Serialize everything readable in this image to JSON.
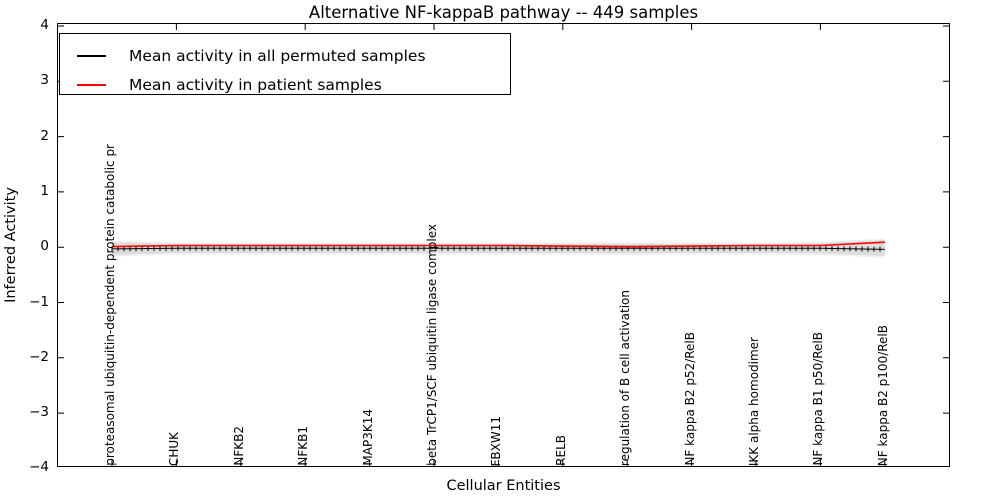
{
  "title": "Alternative NF-kappaB pathway -- 449 samples",
  "axes": {
    "xlabel": "Cellular Entities",
    "ylabel": "Inferred Activity"
  },
  "legend": {
    "position": "upper left",
    "items": [
      {
        "label": "Mean activity in all permuted samples",
        "color": "#000000"
      },
      {
        "label": "Mean activity in patient samples",
        "color": "#ff0000"
      }
    ]
  },
  "chart_data": {
    "type": "line",
    "title": "Alternative NF-kappaB pathway -- 449 samples",
    "xlabel": "Cellular Entities",
    "ylabel": "Inferred Activity",
    "ylim": [
      -4,
      4
    ],
    "yticks": [
      4,
      3,
      2,
      1,
      0,
      -1,
      -2,
      -3,
      -4
    ],
    "grid": false,
    "legend_position": "upper left",
    "x_tick_label_style": "rotated 90 degrees, drawn inside plot anchored at bottom axis",
    "categories": [
      "proteasomal ubiquitin-dependent protein catabolic pr",
      "CHUK",
      "NFKB2",
      "NFKB1",
      "MAP3K14",
      "beta TrCP1/SCF ubiquitin ligase complex",
      "FBXW11",
      "RELB",
      "regulation of B cell activation",
      "NF kappa B2 p52/RelB",
      "IKK alpha homodimer",
      "NF kappa B1 p50/RelB",
      "NF kappa B2 p100/RelB"
    ],
    "series": [
      {
        "name": "Mean activity in all permuted samples",
        "color": "#000000",
        "line_style": "solid with dense vertical tick markers",
        "values": [
          -0.03,
          -0.02,
          -0.02,
          -0.02,
          -0.02,
          -0.02,
          -0.02,
          -0.02,
          -0.02,
          -0.02,
          -0.02,
          -0.02,
          -0.04
        ]
      },
      {
        "name": "Mean activity in patient samples",
        "color": "#ff0000",
        "line_style": "solid",
        "values": [
          0.01,
          0.03,
          0.03,
          0.03,
          0.03,
          0.03,
          0.03,
          0.02,
          0.01,
          0.02,
          0.03,
          0.03,
          0.09
        ]
      }
    ],
    "uncertainty_band": {
      "applies_to": "Mean activity in all permuted samples",
      "color": "#dcdcdc",
      "upper": [
        0.09,
        0.06,
        0.06,
        0.06,
        0.06,
        0.06,
        0.06,
        0.06,
        0.06,
        0.06,
        0.06,
        0.07,
        0.13
      ],
      "lower": [
        -0.14,
        -0.1,
        -0.1,
        -0.1,
        -0.1,
        -0.1,
        -0.1,
        -0.1,
        -0.11,
        -0.1,
        -0.1,
        -0.11,
        -0.16
      ]
    }
  }
}
